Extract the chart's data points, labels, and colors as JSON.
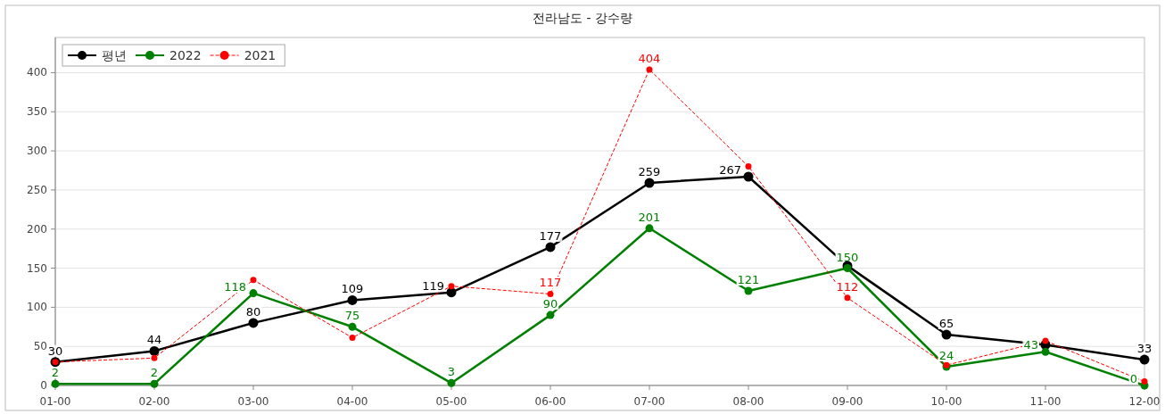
{
  "chart_data": {
    "type": "line",
    "title": "전라남도 - 강수량",
    "categories": [
      "01-00",
      "02-00",
      "03-00",
      "04-00",
      "05-00",
      "06-00",
      "07-00",
      "08-00",
      "09-00",
      "10-00",
      "11-00",
      "12-00"
    ],
    "series": [
      {
        "name": "평년",
        "color": "#000000",
        "line_style": "solid",
        "values": [
          30,
          44,
          80,
          109,
          119,
          177,
          259,
          267,
          153,
          65,
          52,
          33
        ],
        "value_labels": [
          "30",
          "44",
          "80",
          "109",
          "119",
          "177",
          "259",
          "267",
          null,
          "65",
          null,
          "33"
        ]
      },
      {
        "name": "2022",
        "color": "#008000",
        "line_style": "solid",
        "values": [
          2,
          2,
          118,
          75,
          3,
          90,
          201,
          121,
          150,
          24,
          43,
          0
        ],
        "value_labels": [
          "2",
          "2",
          "118",
          "75",
          "3",
          "90",
          "201",
          "121",
          "150",
          "24",
          "43",
          "0"
        ]
      },
      {
        "name": "2021",
        "color": "#ff0000",
        "line_style": "dashed",
        "values": [
          30,
          35,
          135,
          61,
          127,
          117,
          404,
          280,
          112,
          26,
          57,
          5
        ],
        "value_labels": [
          null,
          null,
          null,
          null,
          null,
          "117",
          "404",
          null,
          "112",
          null,
          null,
          null
        ]
      }
    ],
    "ylim": [
      0,
      445
    ],
    "yticks": [
      0,
      50,
      100,
      150,
      200,
      250,
      300,
      350,
      400
    ],
    "grid": "y",
    "legend": "top left",
    "marker": "circle"
  }
}
